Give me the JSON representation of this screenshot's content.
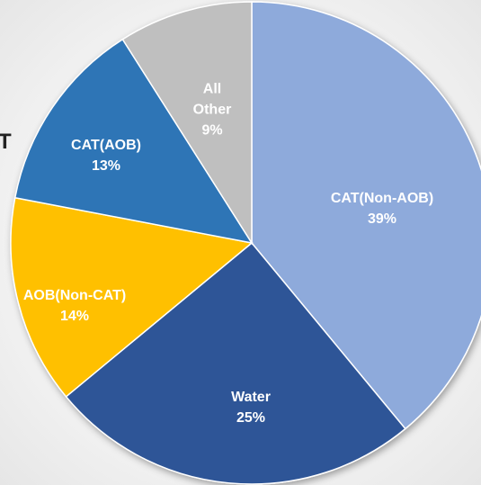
{
  "chart_data": {
    "type": "pie",
    "title": "T",
    "categories": [
      "CAT(Non-AOB)",
      "Water",
      "AOB(Non-CAT)",
      "CAT(AOB)",
      "All Other"
    ],
    "values": [
      39,
      25,
      14,
      13,
      9
    ],
    "value_labels": [
      "39%",
      "25%",
      "14%",
      "13%",
      "9%"
    ],
    "colors": [
      "#8eaadb",
      "#2f5597",
      "#ffc000",
      "#2e75b6",
      "#bfbfbf"
    ]
  }
}
